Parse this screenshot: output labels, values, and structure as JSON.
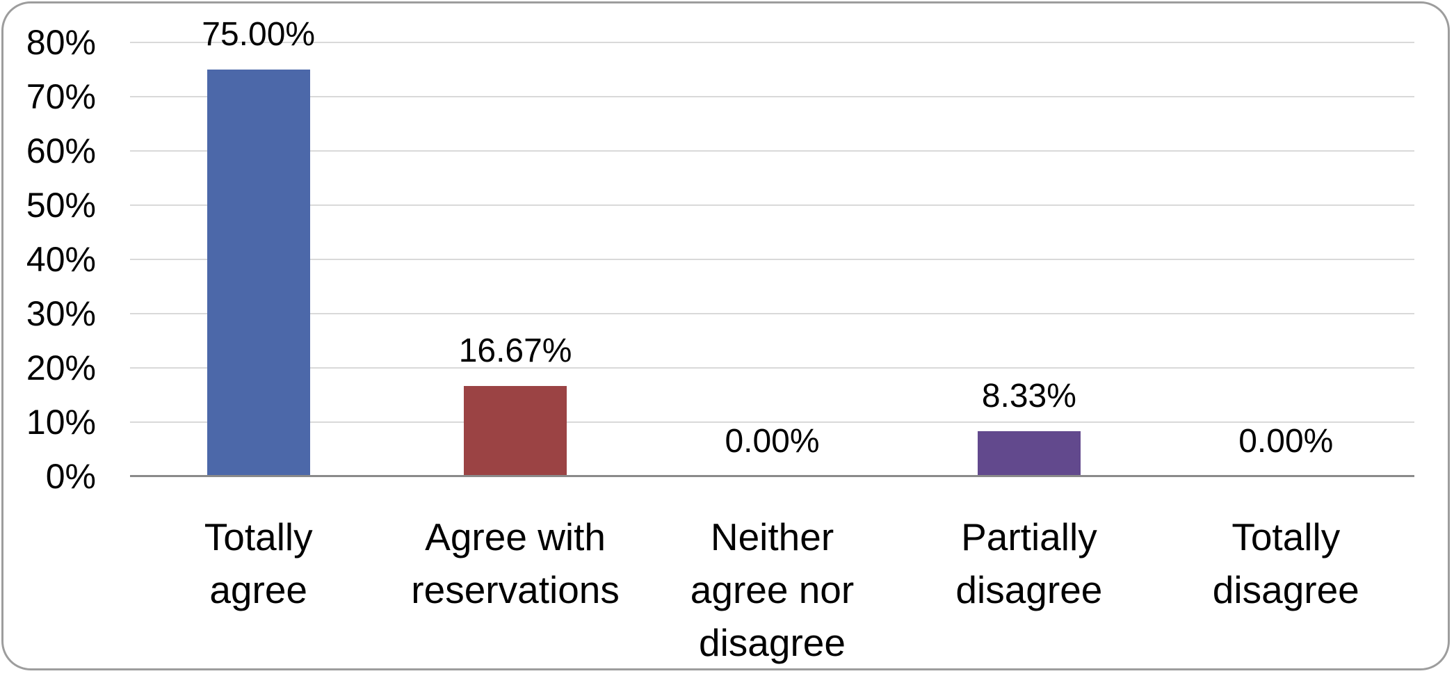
{
  "chart_data": {
    "type": "bar",
    "title": "",
    "xlabel": "",
    "ylabel": "",
    "categories": [
      "Totally agree",
      "Agree with reservations",
      "Neither agree nor disagree",
      "Partially disagree",
      "Totally disagree"
    ],
    "values": [
      75.0,
      16.67,
      0.0,
      8.33,
      0.0
    ],
    "value_labels": [
      "75.00%",
      "16.67%",
      "0.00%",
      "8.33%",
      "0.00%"
    ],
    "bar_colors": [
      "#4c68a9",
      "#9b4344",
      null,
      "#62498d",
      null
    ],
    "y_tick_labels": [
      "0%",
      "10%",
      "20%",
      "30%",
      "40%",
      "50%",
      "60%",
      "70%",
      "80%"
    ],
    "ylim": [
      0,
      80
    ],
    "y_tick_step": 10,
    "grid": "horizontal",
    "legend": "none"
  },
  "style": {
    "background": "#ffffff",
    "frame_border_color": "#9d9d9d",
    "gridline_color": "#d9d9d9",
    "axis_line_color": "#8a8a8a",
    "label_text_color": "#000000"
  }
}
